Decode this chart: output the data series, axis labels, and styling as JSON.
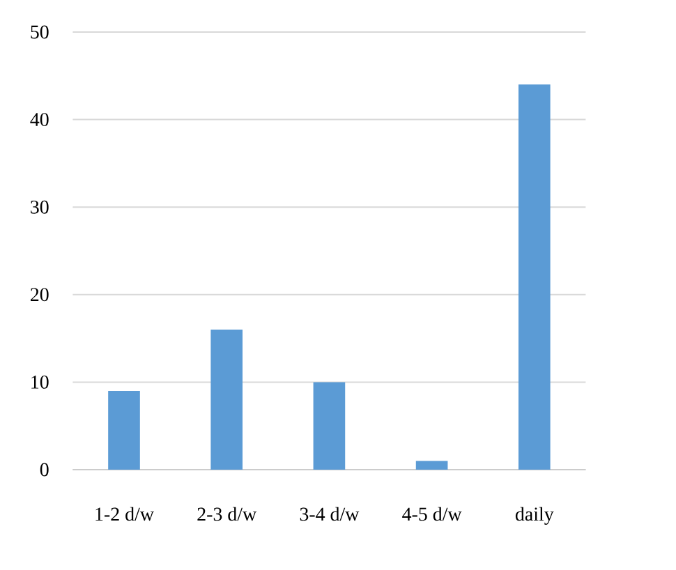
{
  "chart_data": {
    "type": "bar",
    "categories": [
      "1-2 d/w",
      "2-3 d/w",
      "3-4 d/w",
      "4-5 d/w",
      "daily"
    ],
    "values": [
      9,
      16,
      10,
      1,
      44
    ],
    "color": "#5b9bd5",
    "ylim": [
      0,
      50
    ],
    "yticks": [
      0,
      10,
      20,
      30,
      40,
      50
    ],
    "grid": "y"
  }
}
